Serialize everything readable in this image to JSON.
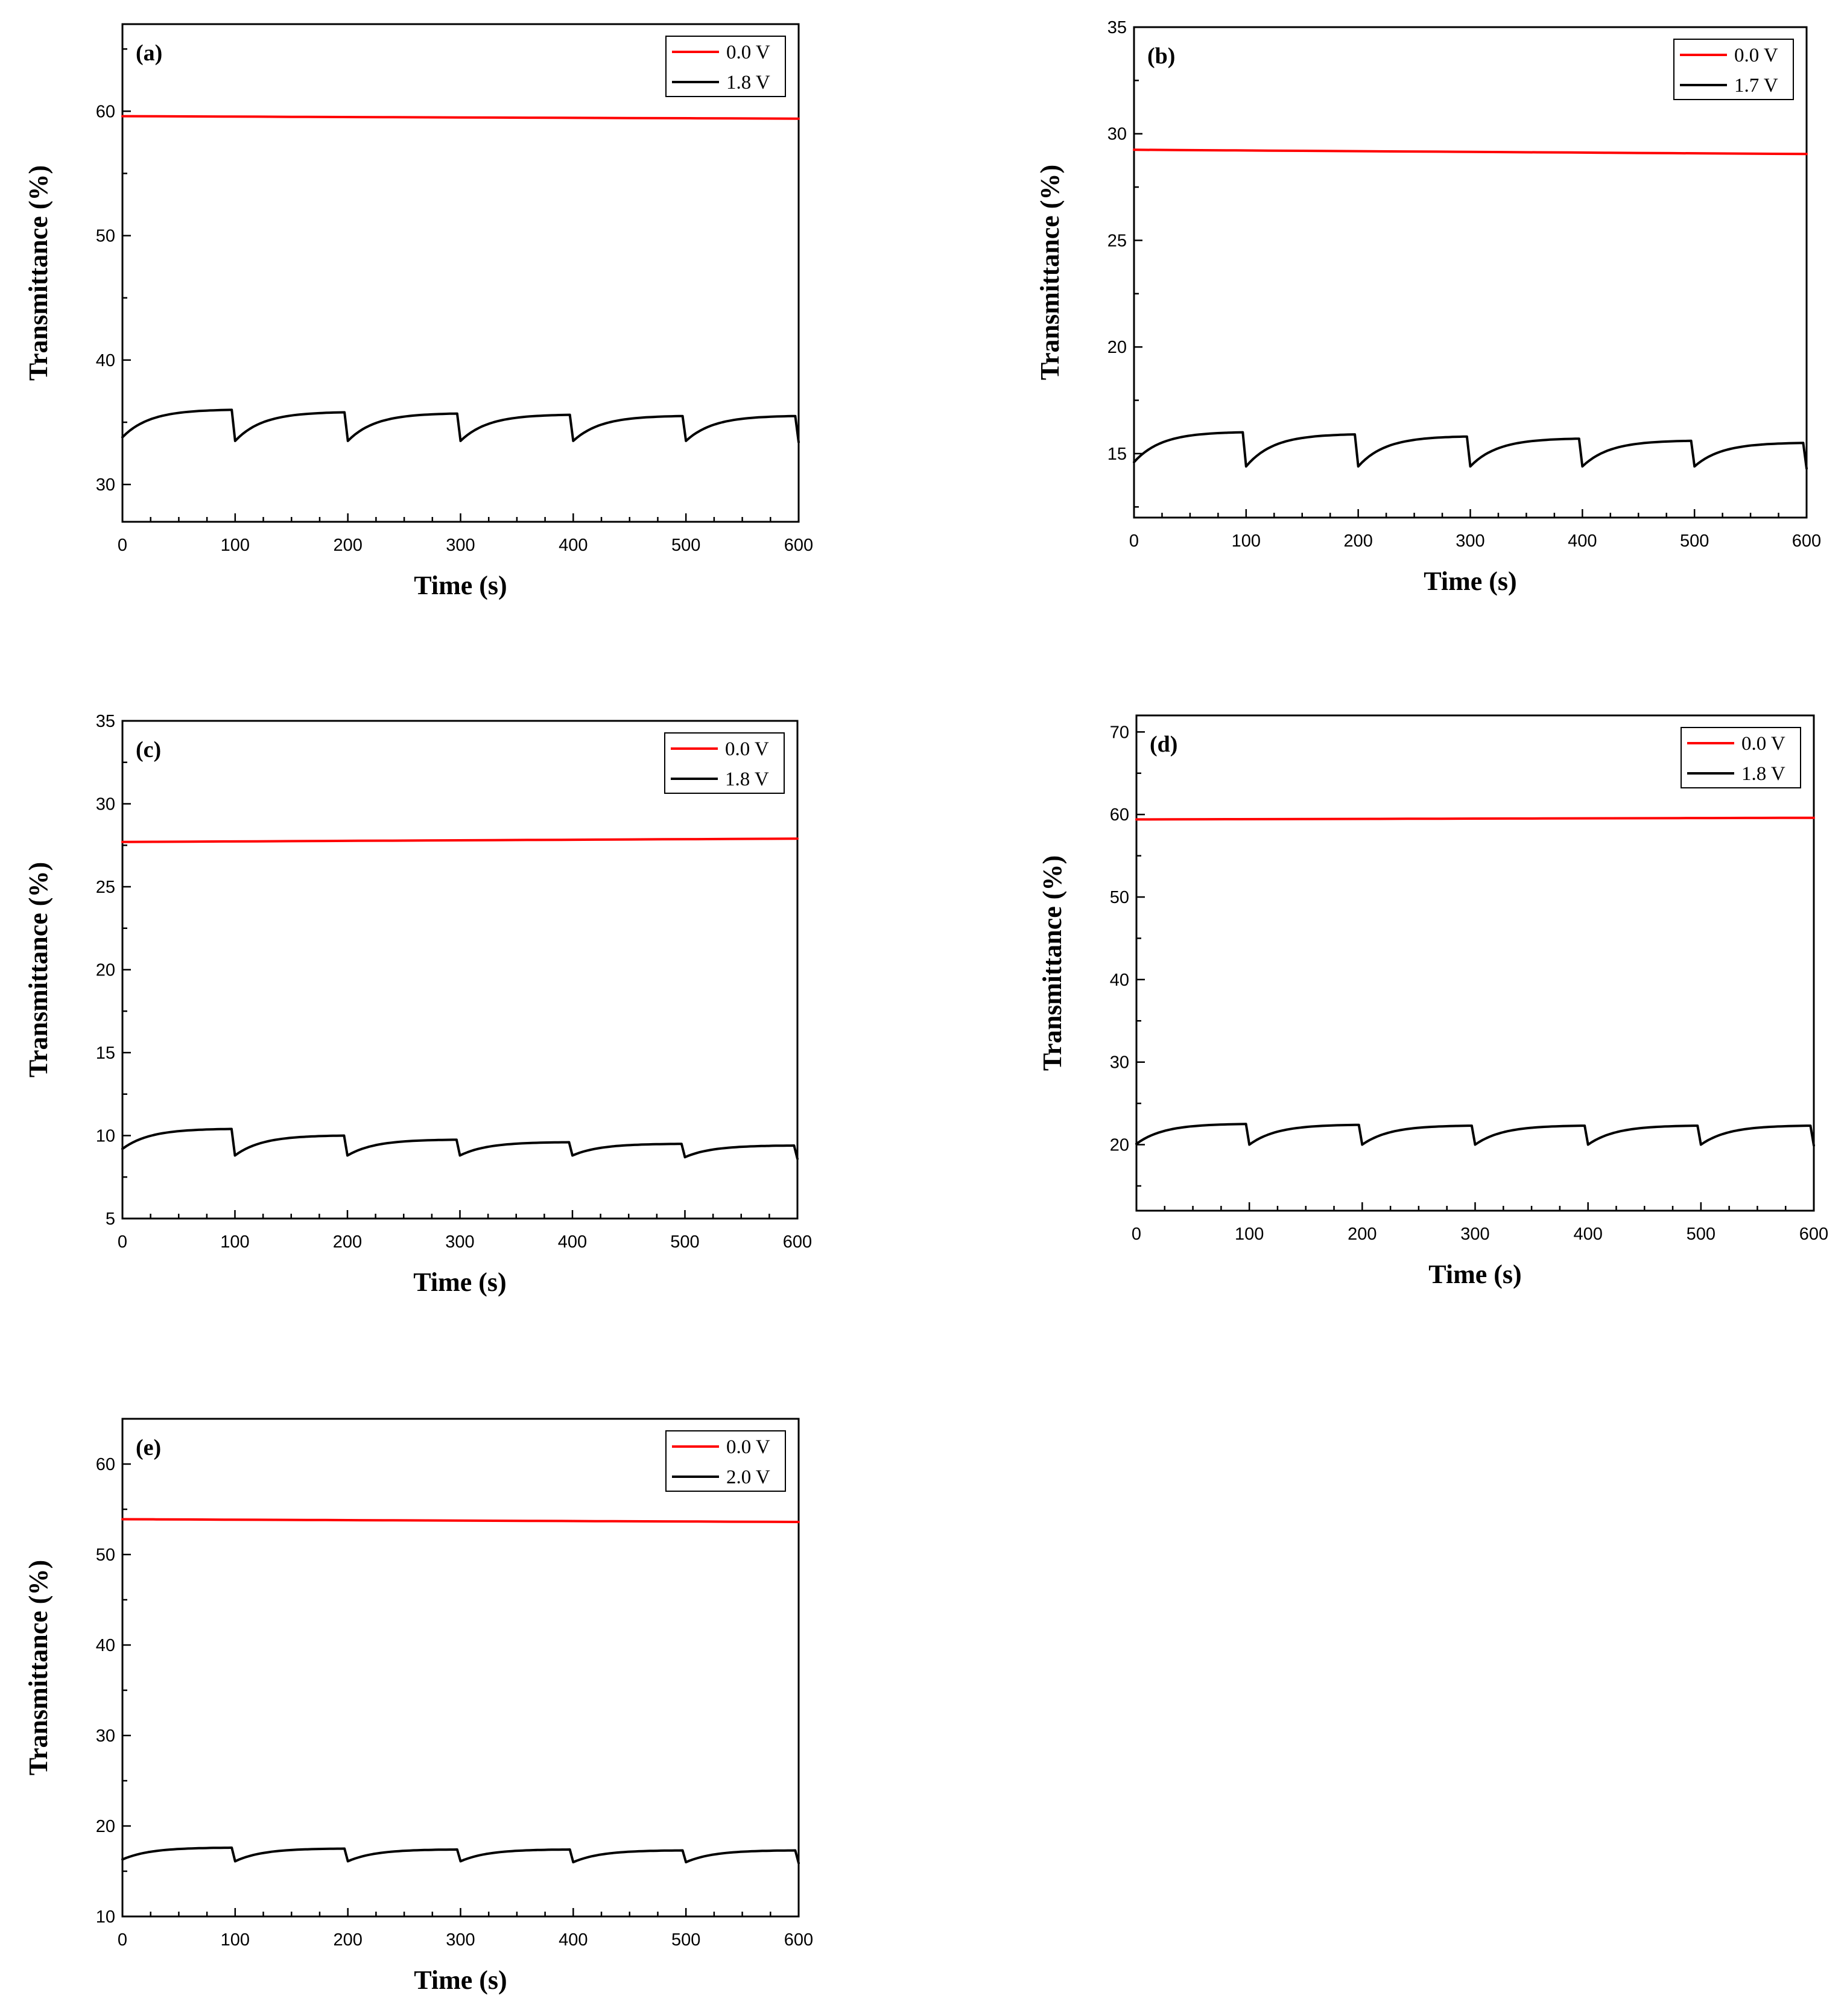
{
  "figure": {
    "colors": {
      "off": "#ff0000",
      "on": "#000000"
    }
  },
  "chart_data": [
    {
      "type": "line",
      "label": "(a)",
      "xlabel": "Time (s)",
      "ylabel": "Transmittance (%)",
      "xlim": [
        0,
        600
      ],
      "ylim": [
        27,
        67
      ],
      "xticks": [
        0,
        100,
        200,
        300,
        400,
        500,
        600
      ],
      "yticks": [
        30,
        40,
        50,
        60
      ],
      "ytick_minor": 5,
      "legend_position": "top-right",
      "series": [
        {
          "name": "0.0 V",
          "color": "#ff0000",
          "kind": "flat",
          "start": 59.6,
          "end": 59.4
        },
        {
          "name": "1.8 V",
          "color": "#000000",
          "kind": "cycles",
          "period": 100,
          "cycles": 6,
          "low": [
            33.8,
            33.5,
            33.5,
            33.5,
            33.5,
            33.5
          ],
          "high": [
            36.0,
            35.8,
            35.7,
            35.6,
            35.5,
            35.5
          ]
        }
      ]
    },
    {
      "type": "line",
      "label": "(b)",
      "xlabel": "Time (s)",
      "ylabel": "Transmittance (%)",
      "xlim": [
        0,
        600
      ],
      "ylim": [
        12,
        35
      ],
      "xticks": [
        0,
        100,
        200,
        300,
        400,
        500,
        600
      ],
      "yticks": [
        15,
        20,
        25,
        30,
        35
      ],
      "ytick_minor": 2.5,
      "legend_position": "top-right",
      "series": [
        {
          "name": "0.0 V",
          "color": "#ff0000",
          "kind": "flat",
          "start": 29.25,
          "end": 29.05
        },
        {
          "name": "1.7 V",
          "color": "#000000",
          "kind": "cycles",
          "period": 100,
          "cycles": 6,
          "low": [
            14.6,
            14.4,
            14.4,
            14.4,
            14.4,
            14.4
          ],
          "high": [
            16.0,
            15.9,
            15.8,
            15.7,
            15.6,
            15.5
          ]
        }
      ]
    },
    {
      "type": "line",
      "label": "(c)",
      "xlabel": "Time (s)",
      "ylabel": "Transmittance (%)",
      "xlim": [
        0,
        600
      ],
      "ylim": [
        5,
        35
      ],
      "xticks": [
        0,
        100,
        200,
        300,
        400,
        500,
        600
      ],
      "yticks": [
        5,
        10,
        15,
        20,
        25,
        30,
        35
      ],
      "ytick_minor": 2.5,
      "legend_position": "top-right",
      "series": [
        {
          "name": "0.0 V",
          "color": "#ff0000",
          "kind": "flat",
          "start": 27.7,
          "end": 27.9
        },
        {
          "name": "1.8 V",
          "color": "#000000",
          "kind": "cycles",
          "period": 100,
          "cycles": 6,
          "low": [
            9.2,
            8.8,
            8.8,
            8.8,
            8.8,
            8.7
          ],
          "high": [
            10.4,
            10.0,
            9.75,
            9.6,
            9.5,
            9.4
          ]
        }
      ]
    },
    {
      "type": "line",
      "label": "(d)",
      "xlabel": "Time (s)",
      "ylabel": "Transmittance (%)",
      "xlim": [
        0,
        600
      ],
      "ylim": [
        12,
        72
      ],
      "xticks": [
        0,
        100,
        200,
        300,
        400,
        500,
        600
      ],
      "yticks": [
        20,
        30,
        40,
        50,
        60,
        70
      ],
      "ytick_minor": 5,
      "legend_position": "top-right",
      "series": [
        {
          "name": "0.0 V",
          "color": "#ff0000",
          "kind": "flat",
          "start": 59.4,
          "end": 59.6
        },
        {
          "name": "1.8 V",
          "color": "#000000",
          "kind": "cycles",
          "period": 100,
          "cycles": 6,
          "low": [
            20.1,
            20.0,
            20.0,
            20.0,
            20.0,
            20.0
          ],
          "high": [
            22.5,
            22.4,
            22.3,
            22.3,
            22.3,
            22.3
          ]
        }
      ]
    },
    {
      "type": "line",
      "label": "(e)",
      "xlabel": "Time (s)",
      "ylabel": "Transmittance (%)",
      "xlim": [
        0,
        600
      ],
      "ylim": [
        10,
        65
      ],
      "xticks": [
        0,
        100,
        200,
        300,
        400,
        500,
        600
      ],
      "yticks": [
        10,
        20,
        30,
        40,
        50,
        60
      ],
      "ytick_minor": 5,
      "legend_position": "top-right",
      "series": [
        {
          "name": "0.0 V",
          "color": "#ff0000",
          "kind": "flat",
          "start": 53.9,
          "end": 53.6
        },
        {
          "name": "2.0 V",
          "color": "#000000",
          "kind": "cycles",
          "period": 100,
          "cycles": 6,
          "low": [
            16.3,
            16.1,
            16.1,
            16.1,
            16.0,
            16.0
          ],
          "high": [
            17.6,
            17.5,
            17.4,
            17.4,
            17.3,
            17.3
          ]
        }
      ]
    }
  ]
}
